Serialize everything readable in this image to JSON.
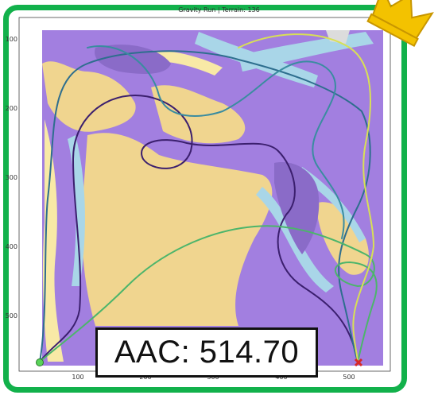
{
  "title": "Gravity Run | Terrain: 136",
  "score_text": "AAC: 514.70",
  "axes": {
    "x_ticks": [
      "100",
      "200",
      "300",
      "400",
      "500"
    ],
    "y_ticks": [
      "100",
      "200",
      "300",
      "400",
      "500"
    ]
  },
  "colors": {
    "frame": "#12b14b",
    "terrain_sand": "#f0d58f",
    "terrain_purple": "#a27fe0",
    "terrain_dark_purple": "#8a6bc8",
    "terrain_light_blue": "#a9d6e8",
    "terrain_pale_yellow": "#f8e9a6",
    "start_marker": "#59d359",
    "end_marker": "#d62728",
    "crown": "#f3c200"
  },
  "icons": {
    "crown": "crown-icon",
    "start": "start-point-icon",
    "end": "end-x-icon"
  }
}
